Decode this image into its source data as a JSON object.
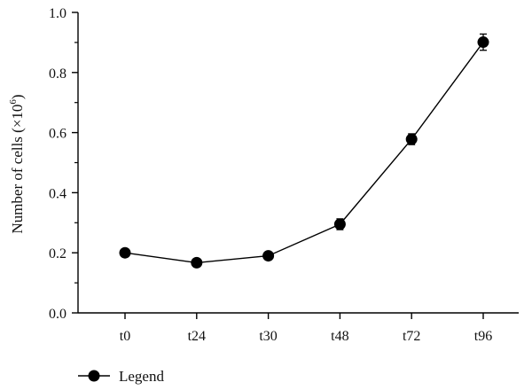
{
  "chart_data": {
    "type": "line",
    "categories": [
      "t0",
      "t24",
      "t30",
      "t48",
      "t72",
      "t96"
    ],
    "series": [
      {
        "name": "Legend",
        "values": [
          0.2,
          0.167,
          0.19,
          0.295,
          0.578,
          0.901
        ],
        "errors": [
          0.008,
          0.008,
          0.008,
          0.018,
          0.018,
          0.027
        ]
      }
    ],
    "ylabel_main": "Number of cells (×10",
    "ylabel_exp": "6",
    "ylabel_close": ")",
    "ylim": [
      0,
      1.0
    ],
    "yticks": [
      "0.0",
      "0.2",
      "0.4",
      "0.6",
      "0.8",
      "1.0"
    ],
    "grid": false,
    "legend_position": "bottom-left",
    "color": "#000000"
  }
}
